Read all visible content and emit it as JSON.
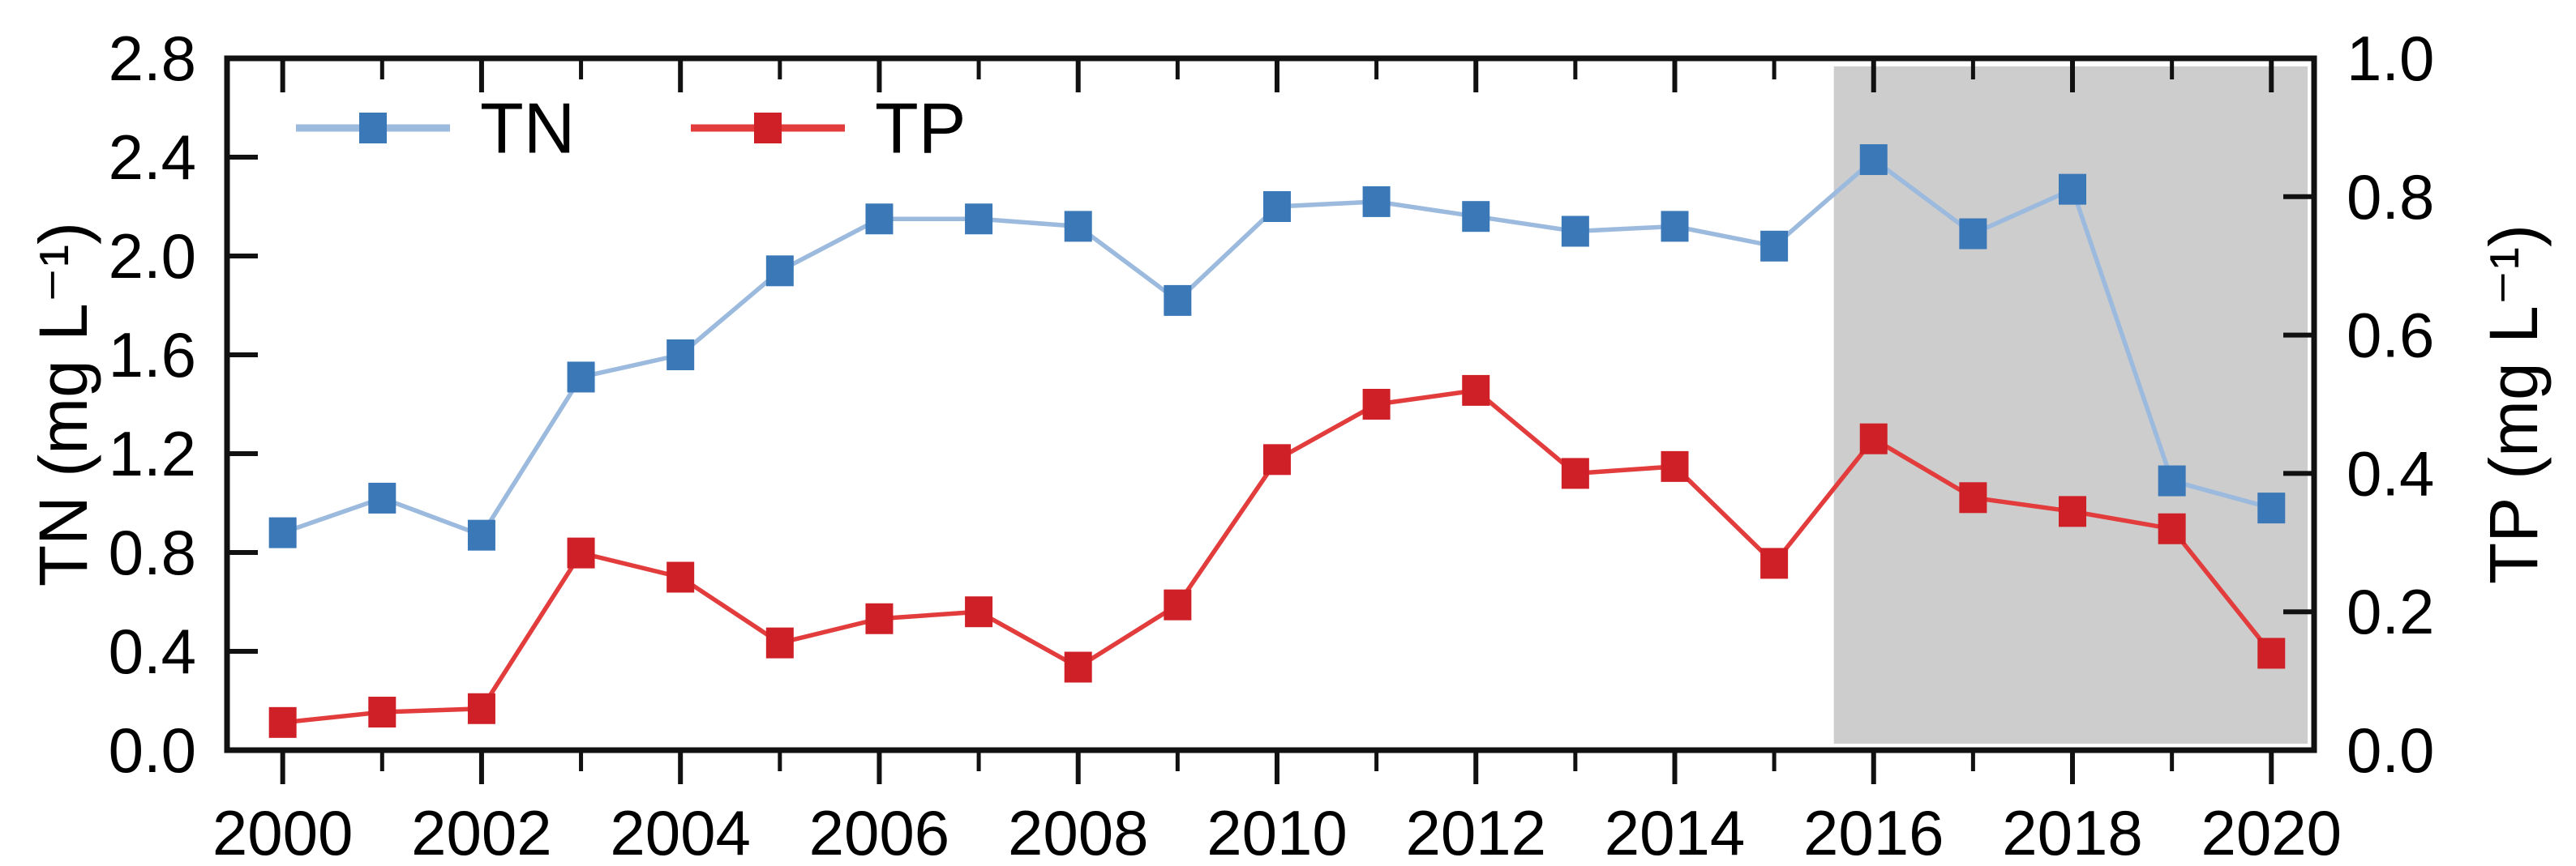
{
  "chart_data": {
    "type": "line",
    "title": "",
    "x": [
      2000,
      2001,
      2002,
      2003,
      2004,
      2005,
      2006,
      2007,
      2008,
      2009,
      2010,
      2011,
      2012,
      2013,
      2014,
      2015,
      2016,
      2017,
      2018,
      2019,
      2020
    ],
    "series": [
      {
        "name": "TN",
        "axis": "left",
        "marker": "square",
        "marker_color": "#3a78b8",
        "line_color": "#9bbade",
        "values": [
          0.88,
          1.02,
          0.87,
          1.51,
          1.6,
          1.94,
          2.15,
          2.15,
          2.12,
          1.82,
          2.2,
          2.22,
          2.16,
          2.1,
          2.12,
          2.04,
          2.39,
          2.09,
          2.27,
          1.09,
          0.98
        ]
      },
      {
        "name": "TP",
        "axis": "right",
        "marker": "square",
        "marker_color": "#cf2027",
        "line_color": "#e23c3c",
        "values": [
          0.04,
          0.055,
          0.06,
          0.285,
          0.25,
          0.155,
          0.19,
          0.2,
          0.12,
          0.21,
          0.42,
          0.5,
          0.52,
          0.4,
          0.41,
          0.27,
          0.45,
          0.365,
          0.345,
          0.32,
          0.14
        ]
      }
    ],
    "xlabel": "",
    "ylabel_left": "TN (mg L⁻¹)",
    "ylabel_right": "TP (mg L⁻¹)",
    "ylim_left": [
      0.0,
      2.8
    ],
    "ylim_right": [
      0.0,
      1.0
    ],
    "yticks_left": [
      "0.0",
      "0.4",
      "0.8",
      "1.2",
      "1.6",
      "2.0",
      "2.4",
      "2.8"
    ],
    "yticks_right": [
      "0.0",
      "0.2",
      "0.4",
      "0.6",
      "0.8",
      "1.0"
    ],
    "xlim": [
      1999.44,
      2020.43
    ],
    "xticks_major": [
      2000,
      2002,
      2004,
      2006,
      2008,
      2010,
      2012,
      2014,
      2016,
      2018,
      2020
    ],
    "xticks_minor": [
      2001,
      2003,
      2005,
      2007,
      2009,
      2011,
      2013,
      2015,
      2017,
      2019
    ],
    "grid": false,
    "legend": {
      "position": "top-left",
      "items": [
        "TN",
        "TP"
      ]
    },
    "highlight_region": {
      "x_start": 2015.6,
      "x_end": 2020.43,
      "color": "#cdcdcd"
    },
    "frame_color": "#111111"
  },
  "legend": {
    "tn": "TN",
    "tp": "TP"
  },
  "axis_titles": {
    "left": "TN (mg L⁻¹)",
    "right": "TP (mg L⁻¹)"
  }
}
